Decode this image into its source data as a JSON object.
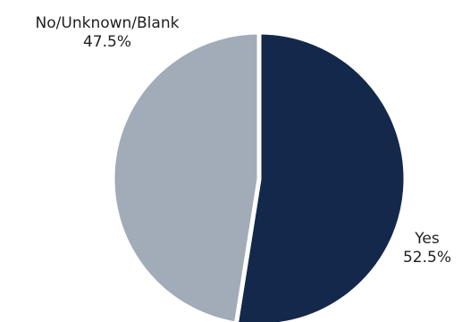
{
  "chart_data": {
    "type": "pie",
    "title": "",
    "slices": [
      {
        "label": "Yes",
        "percent_label": "52.5%",
        "value": 52.5,
        "color": "#13284a"
      },
      {
        "label": "No/Unknown/Blank",
        "percent_label": "47.5%",
        "value": 47.5,
        "color": "#a2abb8"
      }
    ],
    "start_angle_deg": 0,
    "direction": "clockwise",
    "slice_separator_color": "#ffffff"
  }
}
